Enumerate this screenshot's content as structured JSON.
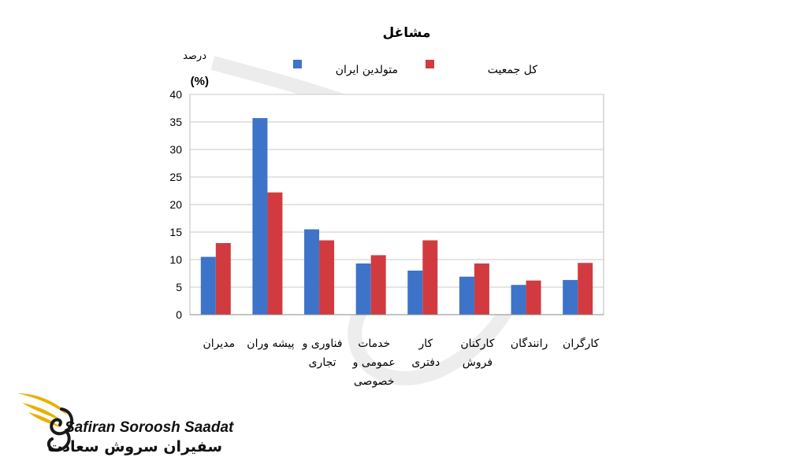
{
  "chart_data": {
    "type": "bar",
    "title": "مشاغل",
    "ylabel": "درصد",
    "ylabel_unit": "(%)",
    "ylim": [
      0,
      40
    ],
    "yticks": [
      0,
      5,
      10,
      15,
      20,
      25,
      30,
      35,
      40
    ],
    "grid": true,
    "legend_position": "top",
    "categories": [
      [
        "مدیران"
      ],
      [
        "پیشه وران"
      ],
      [
        "فناوری و",
        "تجاری"
      ],
      [
        "خدمات",
        "عمومی و",
        "خصوصی"
      ],
      [
        "کار",
        "دفتری"
      ],
      [
        "کارکنان",
        "فروش"
      ],
      [
        "رانندگان"
      ],
      [
        "کارگران"
      ]
    ],
    "series": [
      {
        "name": "متولدین ایران",
        "color": "#3d73c9",
        "values": [
          10.5,
          35.7,
          15.5,
          9.3,
          8.0,
          6.9,
          5.4,
          6.3
        ]
      },
      {
        "name": "کل جمعیت",
        "color": "#d13b3f",
        "values": [
          13.0,
          22.2,
          13.5,
          10.8,
          13.5,
          9.3,
          6.2,
          9.4
        ]
      }
    ]
  },
  "brand": {
    "name_en": "Safiran Soroosh Saadat",
    "name_fa": "سفیران سروش سعادت",
    "colors": {
      "gold": "#e8b000",
      "dark": "#1a1a1a"
    }
  }
}
